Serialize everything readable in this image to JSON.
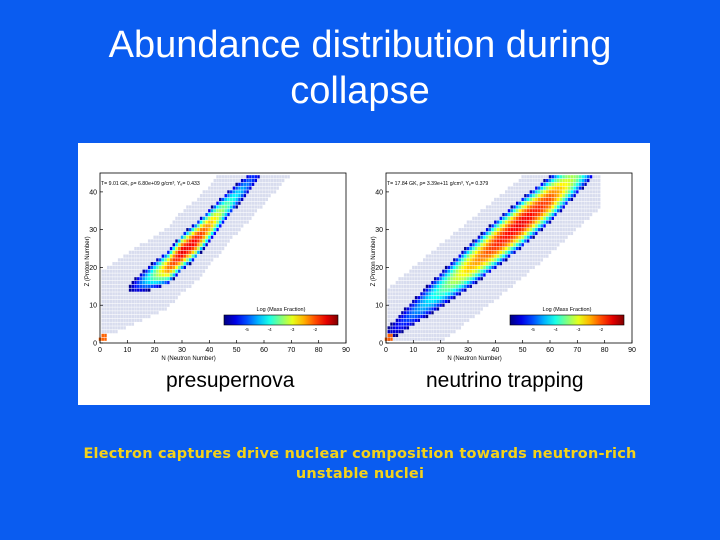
{
  "slide": {
    "title_line1": "Abundance distribution during",
    "title_line2": "collapse",
    "caption_line1": "Electron captures drive nuclear composition towards neutron-rich",
    "caption_line2": "unstable nuclei"
  },
  "chart_data": [
    {
      "type": "heatmap",
      "panel_label": "presupernova",
      "header": "T= 9.01 GK, ρ= 6.80e+09 g/cm³, Yₑ= 0.433",
      "xlabel": "N (Neutron Number)",
      "ylabel": "Z (Proton Number)",
      "xlim": [
        0,
        90
      ],
      "ylim": [
        0,
        45
      ],
      "xticks": [
        0,
        10,
        20,
        30,
        40,
        50,
        60,
        70,
        80,
        90
      ],
      "yticks": [
        0,
        10,
        20,
        30,
        40
      ],
      "colorbar_label": "Log (Mass Fraction)",
      "colorbar_ticks": [
        -5,
        -4,
        -3,
        -2
      ],
      "colorbar_range": [
        -6,
        -1
      ],
      "peak_ridge": [
        {
          "n": 20,
          "z": 18,
          "log_x": -3.5
        },
        {
          "n": 25,
          "z": 20,
          "log_x": -2.2
        },
        {
          "n": 30,
          "z": 24,
          "log_x": -1.5
        },
        {
          "n": 35,
          "z": 27,
          "log_x": -1.6
        },
        {
          "n": 40,
          "z": 31,
          "log_x": -2.4
        },
        {
          "n": 46,
          "z": 36,
          "log_x": -3.6
        },
        {
          "n": 50,
          "z": 39,
          "log_x": -4.2
        }
      ]
    },
    {
      "type": "heatmap",
      "panel_label": "neutrino trapping",
      "header": "T= 17.84 GK, ρ= 3.39e+11 g/cm³, Yₑ= 0.379",
      "xlabel": "N (Neutron Number)",
      "ylabel": "Z (Proton Number)",
      "xlim": [
        0,
        90
      ],
      "ylim": [
        0,
        45
      ],
      "xticks": [
        0,
        10,
        20,
        30,
        40,
        50,
        60,
        70,
        80,
        90
      ],
      "yticks": [
        0,
        10,
        20,
        30,
        40
      ],
      "colorbar_label": "Log (Mass Fraction)",
      "colorbar_ticks": [
        -5,
        -4,
        -3,
        -2
      ],
      "colorbar_range": [
        -6,
        -1
      ],
      "peak_ridge": [
        {
          "n": 10,
          "z": 8,
          "log_x": -4.8
        },
        {
          "n": 20,
          "z": 14,
          "log_x": -3.8
        },
        {
          "n": 30,
          "z": 20,
          "log_x": -2.6
        },
        {
          "n": 40,
          "z": 26,
          "log_x": -1.8
        },
        {
          "n": 50,
          "z": 32,
          "log_x": -1.5
        },
        {
          "n": 60,
          "z": 38,
          "log_x": -2.0
        },
        {
          "n": 68,
          "z": 43,
          "log_x": -3.2
        }
      ]
    }
  ]
}
